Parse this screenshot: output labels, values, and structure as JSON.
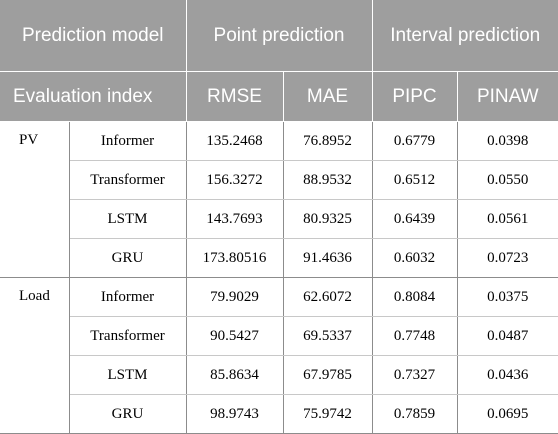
{
  "header": {
    "prediction_model": "Prediction model",
    "point_prediction": "Point prediction",
    "interval_prediction": "Interval prediction",
    "evaluation_index": "Evaluation index",
    "rmse": "RMSE",
    "mae": "MAE",
    "pipc": "PIPC",
    "pinaw": "PINAW"
  },
  "groups": [
    {
      "name": "PV",
      "rows": [
        {
          "model": "Informer",
          "rmse": "135.2468",
          "mae": "76.8952",
          "pipc": "0.6779",
          "pinaw": "0.0398"
        },
        {
          "model": "Transformer",
          "rmse": "156.3272",
          "mae": "88.9532",
          "pipc": "0.6512",
          "pinaw": "0.0550"
        },
        {
          "model": "LSTM",
          "rmse": "143.7693",
          "mae": "80.9325",
          "pipc": "0.6439",
          "pinaw": "0.0561"
        },
        {
          "model": "GRU",
          "rmse": "173.80516",
          "mae": "91.4636",
          "pipc": "0.6032",
          "pinaw": "0.0723"
        }
      ]
    },
    {
      "name": "Load",
      "rows": [
        {
          "model": "Informer",
          "rmse": "79.9029",
          "mae": "62.6072",
          "pipc": "0.8084",
          "pinaw": "0.0375"
        },
        {
          "model": "Transformer",
          "rmse": "90.5427",
          "mae": "69.5337",
          "pipc": "0.7748",
          "pinaw": "0.0487"
        },
        {
          "model": "LSTM",
          "rmse": "85.8634",
          "mae": "67.9785",
          "pipc": "0.7327",
          "pinaw": "0.0436"
        },
        {
          "model": "GRU",
          "rmse": "98.9743",
          "mae": "75.9742",
          "pipc": "0.7859",
          "pinaw": "0.0695"
        }
      ]
    }
  ]
}
